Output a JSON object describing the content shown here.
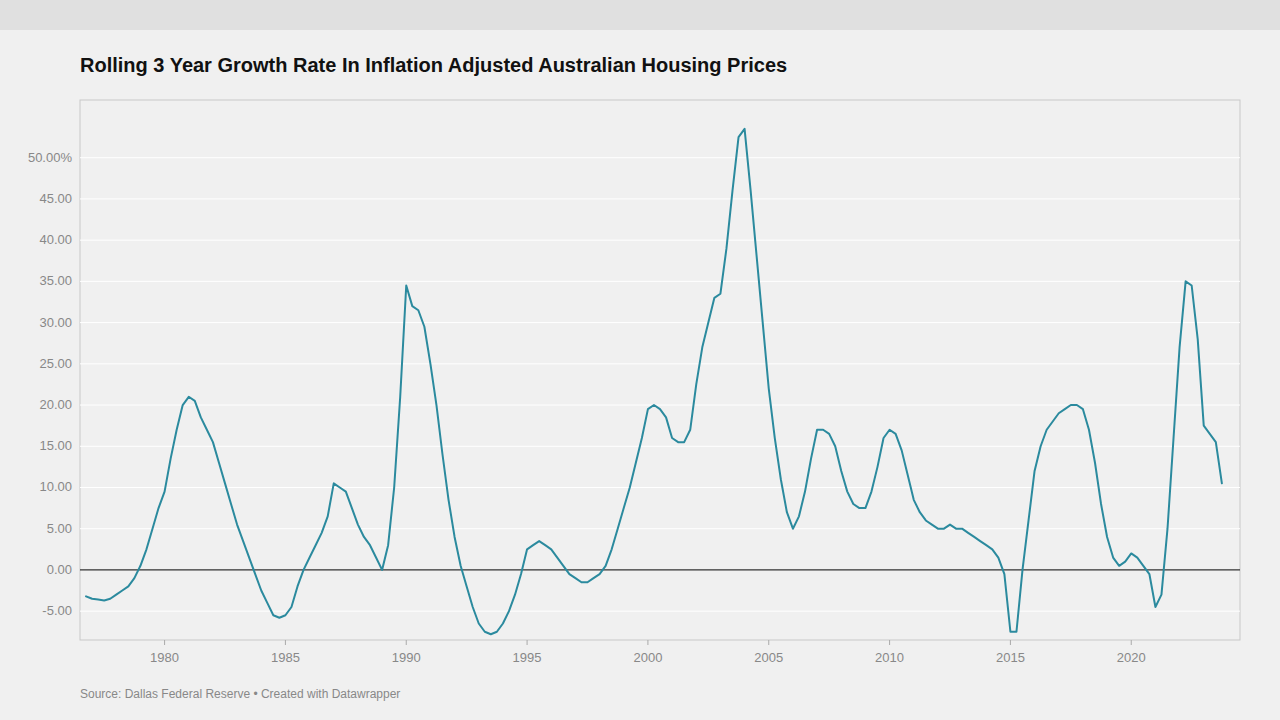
{
  "chart_data": {
    "type": "line",
    "title": "Rolling 3 Year Growth Rate In Inflation Adjusted Australian Housing Prices",
    "annotations": [
      "Source: Dallas Federal Reserve • Created with Datawrapper"
    ],
    "color": "#2b8a9e",
    "grid": true,
    "xlim": [
      1976.5,
      2024.5
    ],
    "xticks": [
      1980,
      1985,
      1990,
      1995,
      2000,
      2005,
      2010,
      2015,
      2020
    ],
    "ylim": [
      -8.5,
      57
    ],
    "yticks": [
      {
        "value": -5.0,
        "label": "-5.00"
      },
      {
        "value": 0.0,
        "label": "0.00"
      },
      {
        "value": 5.0,
        "label": "5.00"
      },
      {
        "value": 10.0,
        "label": "10.00"
      },
      {
        "value": 15.0,
        "label": "15.00"
      },
      {
        "value": 20.0,
        "label": "20.00"
      },
      {
        "value": 25.0,
        "label": "25.00"
      },
      {
        "value": 30.0,
        "label": "30.00"
      },
      {
        "value": 35.0,
        "label": "35.00"
      },
      {
        "value": 40.0,
        "label": "40.00"
      },
      {
        "value": 45.0,
        "label": "45.00"
      },
      {
        "value": 50.0,
        "label": "50.00%"
      }
    ],
    "x": [
      1976.75,
      1977.0,
      1977.25,
      1977.5,
      1977.75,
      1978.0,
      1978.25,
      1978.5,
      1978.75,
      1979.0,
      1979.25,
      1979.5,
      1979.75,
      1980.0,
      1980.25,
      1980.5,
      1980.75,
      1981.0,
      1981.25,
      1981.5,
      1981.75,
      1982.0,
      1982.25,
      1982.5,
      1982.75,
      1983.0,
      1983.25,
      1983.5,
      1983.75,
      1984.0,
      1984.25,
      1984.5,
      1984.75,
      1985.0,
      1985.25,
      1985.5,
      1985.75,
      1986.0,
      1986.25,
      1986.5,
      1986.75,
      1987.0,
      1987.25,
      1987.5,
      1987.75,
      1988.0,
      1988.25,
      1988.5,
      1988.75,
      1989.0,
      1989.25,
      1989.5,
      1989.75,
      1990.0,
      1990.25,
      1990.5,
      1990.75,
      1991.0,
      1991.25,
      1991.5,
      1991.75,
      1992.0,
      1992.25,
      1992.5,
      1992.75,
      1993.0,
      1993.25,
      1993.5,
      1993.75,
      1994.0,
      1994.25,
      1994.5,
      1994.75,
      1995.0,
      1995.25,
      1995.5,
      1995.75,
      1996.0,
      1996.25,
      1996.5,
      1996.75,
      1997.0,
      1997.25,
      1997.5,
      1997.75,
      1998.0,
      1998.25,
      1998.5,
      1998.75,
      1999.0,
      1999.25,
      1999.5,
      1999.75,
      2000.0,
      2000.25,
      2000.5,
      2000.75,
      2001.0,
      2001.25,
      2001.5,
      2001.75,
      2002.0,
      2002.25,
      2002.5,
      2002.75,
      2003.0,
      2003.25,
      2003.5,
      2003.75,
      2004.0,
      2004.25,
      2004.5,
      2004.75,
      2005.0,
      2005.25,
      2005.5,
      2005.75,
      2006.0,
      2006.25,
      2006.5,
      2006.75,
      2007.0,
      2007.25,
      2007.5,
      2007.75,
      2008.0,
      2008.25,
      2008.5,
      2008.75,
      2009.0,
      2009.25,
      2009.5,
      2009.75,
      2010.0,
      2010.25,
      2010.5,
      2010.75,
      2011.0,
      2011.25,
      2011.5,
      2011.75,
      2012.0,
      2012.25,
      2012.5,
      2012.75,
      2013.0,
      2013.25,
      2013.5,
      2013.75,
      2014.0,
      2014.25,
      2014.5,
      2014.75,
      2015.0,
      2015.25,
      2015.5,
      2015.75,
      2016.0,
      2016.25,
      2016.5,
      2016.75,
      2017.0,
      2017.25,
      2017.5,
      2017.75,
      2018.0,
      2018.25,
      2018.5,
      2018.75,
      2019.0,
      2019.25,
      2019.5,
      2019.75,
      2020.0,
      2020.25,
      2020.5,
      2020.75,
      2021.0,
      2021.25,
      2021.5,
      2021.75,
      2022.0,
      2022.25,
      2022.5,
      2022.75,
      2023.0,
      2023.25,
      2023.5,
      2023.75
    ],
    "values": [
      -3.2,
      -3.5,
      -3.6,
      -3.7,
      -3.5,
      -3.0,
      -2.5,
      -2.0,
      -1.0,
      0.5,
      2.5,
      5.0,
      7.5,
      9.5,
      13.5,
      17.0,
      20.0,
      21.0,
      20.5,
      18.5,
      17.0,
      15.5,
      13.0,
      10.5,
      8.0,
      5.5,
      3.5,
      1.5,
      -0.5,
      -2.5,
      -4.0,
      -5.5,
      -5.8,
      -5.5,
      -4.5,
      -2.0,
      0.0,
      1.5,
      3.0,
      4.5,
      6.5,
      10.5,
      10.0,
      9.5,
      7.5,
      5.5,
      4.0,
      3.0,
      1.5,
      0.0,
      3.0,
      10.0,
      21.0,
      34.5,
      32.0,
      31.5,
      29.5,
      25.0,
      20.0,
      14.0,
      8.5,
      4.0,
      0.5,
      -2.0,
      -4.5,
      -6.5,
      -7.5,
      -7.8,
      -7.5,
      -6.5,
      -5.0,
      -3.0,
      -0.5,
      2.5,
      3.0,
      3.5,
      3.0,
      2.5,
      1.5,
      0.5,
      -0.5,
      -1.0,
      -1.5,
      -1.5,
      -1.0,
      -0.5,
      0.5,
      2.5,
      5.0,
      7.5,
      10.0,
      13.0,
      16.0,
      19.5,
      20.0,
      19.5,
      18.5,
      16.0,
      15.5,
      15.5,
      17.0,
      22.5,
      27.0,
      30.0,
      33.0,
      33.5,
      39.0,
      46.0,
      52.5,
      53.5,
      46.0,
      38.0,
      30.0,
      22.0,
      16.0,
      11.0,
      7.0,
      5.0,
      6.5,
      9.5,
      13.5,
      17.0,
      17.0,
      16.5,
      15.0,
      12.0,
      9.5,
      8.0,
      7.5,
      7.5,
      9.5,
      12.5,
      16.0,
      17.0,
      16.5,
      14.5,
      11.5,
      8.5,
      7.0,
      6.0,
      5.5,
      5.0,
      5.0,
      5.5,
      5.0,
      5.0,
      4.5,
      4.0,
      3.5,
      3.0,
      2.5,
      1.5,
      -0.5,
      -7.5,
      -7.5,
      0.0,
      6.0,
      12.0,
      15.0,
      17.0,
      18.0,
      19.0,
      19.5,
      20.0,
      20.0,
      19.5,
      17.0,
      13.0,
      8.0,
      4.0,
      1.5,
      0.5,
      1.0,
      2.0,
      1.5,
      0.5,
      -0.5,
      -4.5,
      -3.0,
      5.0,
      16.0,
      27.0,
      35.0,
      34.5,
      28.0,
      17.5,
      16.5,
      15.5,
      10.5
    ]
  }
}
